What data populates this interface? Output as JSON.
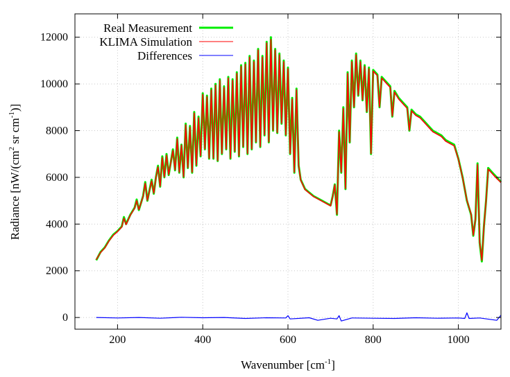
{
  "chart_data": {
    "type": "line",
    "title": "",
    "xlabel": "Wavenumber [cm",
    "xlabel_sup": "-1",
    "xlabel_end": "]",
    "ylabel": "Radiance [nW/(cm",
    "ylabel_sup1": "2",
    "ylabel_mid": " sr cm",
    "ylabel_sup2": "-1",
    "ylabel_end": ")]",
    "xlim": [
      100,
      1100
    ],
    "ylim": [
      -500,
      13000
    ],
    "xticks": [
      200,
      400,
      600,
      800,
      1000
    ],
    "yticks": [
      0,
      2000,
      4000,
      6000,
      8000,
      10000,
      12000
    ],
    "grid": true,
    "legend_position": "top-left",
    "series": [
      {
        "name": "Real Measurement",
        "color": "#00ee00",
        "x": [
          150,
          160,
          170,
          180,
          190,
          200,
          210,
          215,
          220,
          230,
          240,
          245,
          250,
          260,
          265,
          270,
          280,
          285,
          290,
          295,
          300,
          305,
          310,
          315,
          320,
          330,
          335,
          340,
          345,
          350,
          355,
          360,
          365,
          370,
          375,
          380,
          385,
          390,
          395,
          400,
          405,
          410,
          415,
          420,
          425,
          430,
          435,
          440,
          445,
          450,
          455,
          460,
          465,
          470,
          475,
          480,
          485,
          490,
          495,
          500,
          505,
          510,
          515,
          520,
          525,
          530,
          535,
          540,
          545,
          550,
          555,
          560,
          565,
          570,
          575,
          580,
          585,
          590,
          595,
          600,
          605,
          610,
          615,
          620,
          625,
          630,
          640,
          660,
          680,
          700,
          705,
          710,
          715,
          720,
          725,
          730,
          735,
          740,
          745,
          750,
          755,
          760,
          765,
          770,
          775,
          780,
          785,
          790,
          795,
          800,
          810,
          815,
          820,
          830,
          840,
          845,
          850,
          860,
          870,
          880,
          885,
          890,
          900,
          910,
          920,
          930,
          940,
          950,
          960,
          970,
          980,
          990,
          1000,
          1010,
          1020,
          1030,
          1035,
          1040,
          1045,
          1050,
          1055,
          1060,
          1065,
          1070,
          1080,
          1090,
          1100
        ],
        "y": [
          2450,
          2800,
          3000,
          3300,
          3550,
          3700,
          3900,
          4300,
          4000,
          4400,
          4700,
          5050,
          4600,
          5200,
          5800,
          5000,
          5900,
          5300,
          6000,
          6500,
          5600,
          6900,
          6000,
          7000,
          6100,
          7200,
          6300,
          7700,
          6200,
          7400,
          6000,
          8300,
          6400,
          8200,
          6200,
          8800,
          6500,
          8600,
          6900,
          9600,
          7200,
          9500,
          6800,
          9800,
          6800,
          10000,
          6700,
          10200,
          7000,
          9900,
          7200,
          10300,
          6800,
          10200,
          7100,
          10500,
          6900,
          10800,
          7300,
          10900,
          7000,
          11200,
          7200,
          11000,
          7500,
          11500,
          7300,
          11200,
          7800,
          11800,
          7500,
          12000,
          8000,
          11500,
          7900,
          11300,
          8300,
          11000,
          7800,
          10700,
          7000,
          9400,
          6200,
          9800,
          6500,
          5900,
          5500,
          5200,
          5000,
          4800,
          5200,
          5700,
          4400,
          8000,
          6200,
          9000,
          5500,
          10500,
          7500,
          11000,
          9000,
          11300,
          9500,
          11000,
          9300,
          10800,
          8800,
          10700,
          7000,
          10600,
          10400,
          9000,
          10300,
          10100,
          9900,
          8600,
          9700,
          9400,
          9200,
          9000,
          8000,
          8900,
          8700,
          8600,
          8400,
          8200,
          8000,
          7900,
          7800,
          7600,
          7500,
          7400,
          6800,
          6000,
          5000,
          4400,
          3500,
          4200,
          6600,
          3200,
          2400,
          3900,
          5000,
          6400,
          6200,
          6000,
          5800
        ]
      },
      {
        "name": "KLIMA Simulation",
        "color": "#ff0000",
        "x": [
          150,
          160,
          170,
          180,
          190,
          200,
          210,
          215,
          220,
          230,
          240,
          245,
          250,
          260,
          265,
          270,
          280,
          285,
          290,
          295,
          300,
          305,
          310,
          315,
          320,
          330,
          335,
          340,
          345,
          350,
          355,
          360,
          365,
          370,
          375,
          380,
          385,
          390,
          395,
          400,
          405,
          410,
          415,
          420,
          425,
          430,
          435,
          440,
          445,
          450,
          455,
          460,
          465,
          470,
          475,
          480,
          485,
          490,
          495,
          500,
          505,
          510,
          515,
          520,
          525,
          530,
          535,
          540,
          545,
          550,
          555,
          560,
          565,
          570,
          575,
          580,
          585,
          590,
          595,
          600,
          605,
          610,
          615,
          620,
          625,
          630,
          640,
          660,
          680,
          700,
          705,
          710,
          715,
          720,
          725,
          730,
          735,
          740,
          745,
          750,
          755,
          760,
          765,
          770,
          775,
          780,
          785,
          790,
          795,
          800,
          810,
          815,
          820,
          830,
          840,
          845,
          850,
          860,
          870,
          880,
          885,
          890,
          900,
          910,
          920,
          930,
          940,
          950,
          960,
          970,
          980,
          990,
          1000,
          1010,
          1020,
          1030,
          1035,
          1040,
          1045,
          1050,
          1055,
          1060,
          1065,
          1070,
          1080,
          1090,
          1100
        ],
        "y": [
          2480,
          2780,
          2980,
          3280,
          3520,
          3680,
          3880,
          4250,
          3980,
          4380,
          4680,
          5000,
          4620,
          5180,
          5750,
          5020,
          5850,
          5320,
          5980,
          6450,
          5620,
          6850,
          6020,
          6950,
          6120,
          7150,
          6320,
          7650,
          6220,
          7380,
          6020,
          8250,
          6420,
          8150,
          6220,
          8750,
          6520,
          8550,
          6920,
          9550,
          7220,
          9450,
          6820,
          9750,
          6820,
          9950,
          6720,
          10150,
          7020,
          9850,
          7220,
          10250,
          6820,
          10150,
          7120,
          10450,
          6920,
          10750,
          7320,
          10850,
          7020,
          11150,
          7220,
          10950,
          7520,
          11450,
          7320,
          11150,
          7820,
          11750,
          7520,
          11900,
          8020,
          11450,
          7920,
          11250,
          8320,
          10950,
          7820,
          10650,
          7020,
          9350,
          6220,
          9750,
          6520,
          5880,
          5480,
          5180,
          4980,
          4780,
          5180,
          5680,
          4420,
          7950,
          6220,
          8950,
          5520,
          10450,
          7520,
          10950,
          9020,
          11250,
          9520,
          10950,
          9320,
          10750,
          8820,
          10650,
          7020,
          10550,
          10350,
          9020,
          10250,
          10050,
          9850,
          8620,
          9650,
          9350,
          9150,
          8950,
          8020,
          8850,
          8650,
          8550,
          8350,
          8150,
          7950,
          7850,
          7750,
          7550,
          7450,
          7350,
          6780,
          5980,
          5020,
          4420,
          3520,
          4220,
          6550,
          3220,
          2450,
          3880,
          4980,
          6350,
          6150,
          5950,
          5780
        ]
      },
      {
        "name": "Differences",
        "color": "#0000ff",
        "x": [
          150,
          200,
          250,
          300,
          350,
          400,
          450,
          500,
          550,
          595,
          600,
          605,
          650,
          670,
          700,
          715,
          720,
          725,
          750,
          800,
          850,
          900,
          950,
          1000,
          1015,
          1020,
          1025,
          1050,
          1090,
          1100
        ],
        "y": [
          0,
          -20,
          0,
          -30,
          10,
          -10,
          0,
          -40,
          -10,
          -20,
          80,
          -60,
          -10,
          -120,
          -30,
          -60,
          80,
          -150,
          -20,
          -30,
          -40,
          -10,
          -30,
          -20,
          -40,
          200,
          -40,
          -20,
          -120,
          100
        ]
      }
    ]
  }
}
